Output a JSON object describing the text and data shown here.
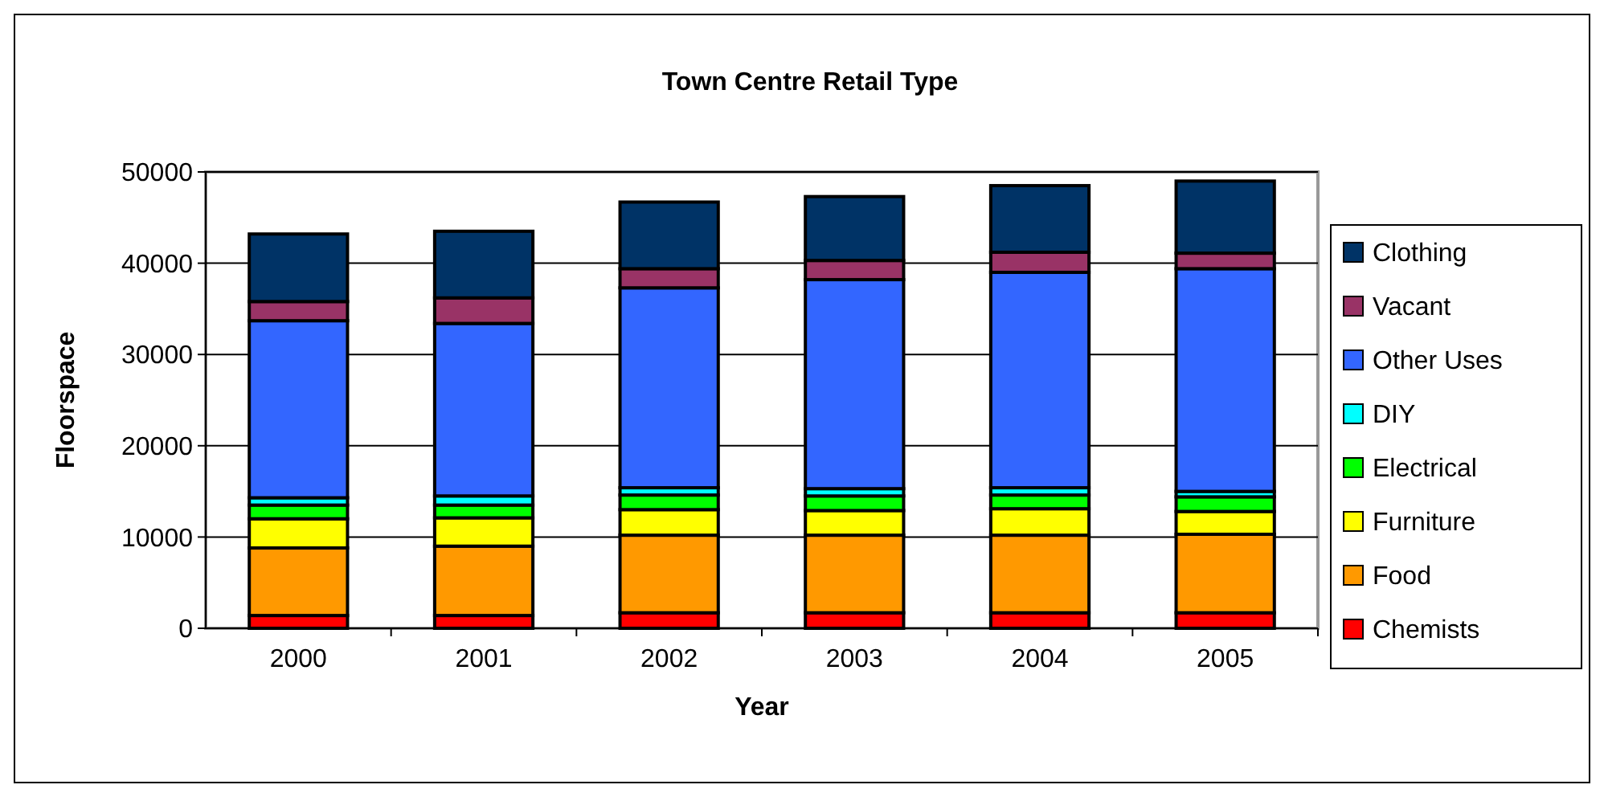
{
  "chart_data": {
    "type": "bar",
    "title": "Town Centre Retail Type",
    "xlabel": "Year",
    "ylabel": "Floorspace",
    "categories": [
      "2000",
      "2001",
      "2002",
      "2003",
      "2004",
      "2005"
    ],
    "stacked": true,
    "ylim": [
      0,
      50000
    ],
    "yticks": [
      0,
      10000,
      20000,
      30000,
      40000,
      50000
    ],
    "grid": "y",
    "legend": "right",
    "series": [
      {
        "name": "Chemists",
        "color": "#ff0000",
        "values": [
          1400,
          1400,
          1700,
          1700,
          1700,
          1700
        ]
      },
      {
        "name": "Food",
        "color": "#ff9900",
        "values": [
          7400,
          7600,
          8500,
          8500,
          8500,
          8600
        ]
      },
      {
        "name": "Furniture",
        "color": "#ffff00",
        "values": [
          3200,
          3100,
          2800,
          2700,
          2900,
          2500
        ]
      },
      {
        "name": "Electrical",
        "color": "#00ff00",
        "values": [
          1500,
          1400,
          1600,
          1600,
          1500,
          1600
        ]
      },
      {
        "name": "DIY",
        "color": "#00ffff",
        "values": [
          800,
          1000,
          800,
          800,
          800,
          600
        ]
      },
      {
        "name": "Other Uses",
        "color": "#3366ff",
        "values": [
          19400,
          18900,
          21900,
          22900,
          23600,
          24400
        ]
      },
      {
        "name": "Vacant",
        "color": "#993366",
        "values": [
          2100,
          2800,
          2100,
          2100,
          2200,
          1700
        ]
      },
      {
        "name": "Clothing",
        "color": "#003366",
        "values": [
          7400,
          7300,
          7300,
          7000,
          7300,
          7900
        ]
      }
    ]
  }
}
